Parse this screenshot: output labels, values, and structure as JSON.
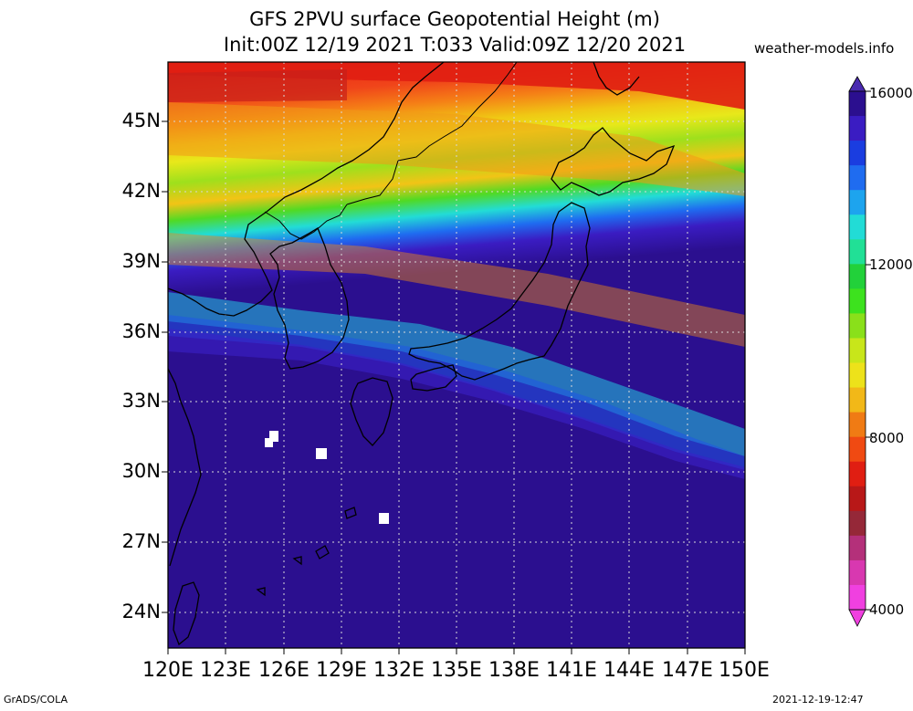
{
  "title": {
    "line1": "GFS 2PVU surface Geopotential Height (m)",
    "line2": "Init:00Z 12/19 2021 T:033 Valid:09Z 12/20 2021"
  },
  "site_label": "weather-models.info",
  "footer": {
    "left": "GrADS/COLA",
    "right": "2021-12-19-12:47"
  },
  "map": {
    "lat_labels": [
      "45N",
      "42N",
      "39N",
      "36N",
      "33N",
      "30N",
      "27N",
      "24N"
    ],
    "lon_labels": [
      "120E",
      "123E",
      "126E",
      "129E",
      "132E",
      "135E",
      "138E",
      "141E",
      "144E",
      "147E",
      "150E"
    ],
    "lon_range": [
      120,
      150
    ],
    "lat_range": [
      22.5,
      47.5
    ],
    "grid": true,
    "features": [
      "coastlines",
      "country-borders"
    ]
  },
  "colorbar": {
    "labels": [
      "16000",
      "12000",
      "8000",
      "4000"
    ],
    "colors": [
      "#2b0f8f",
      "#3a1cc2",
      "#1a3de0",
      "#1f6cf0",
      "#1da4ee",
      "#22dcd6",
      "#21e096",
      "#22d13a",
      "#3de21e",
      "#8ae01a",
      "#c8e61a",
      "#ede21a",
      "#f2b818",
      "#f07b14",
      "#f04a12",
      "#e01e12",
      "#b81818",
      "#952838",
      "#b4307a",
      "#d838b0",
      "#f040e0"
    ],
    "direction": "high-top"
  }
}
